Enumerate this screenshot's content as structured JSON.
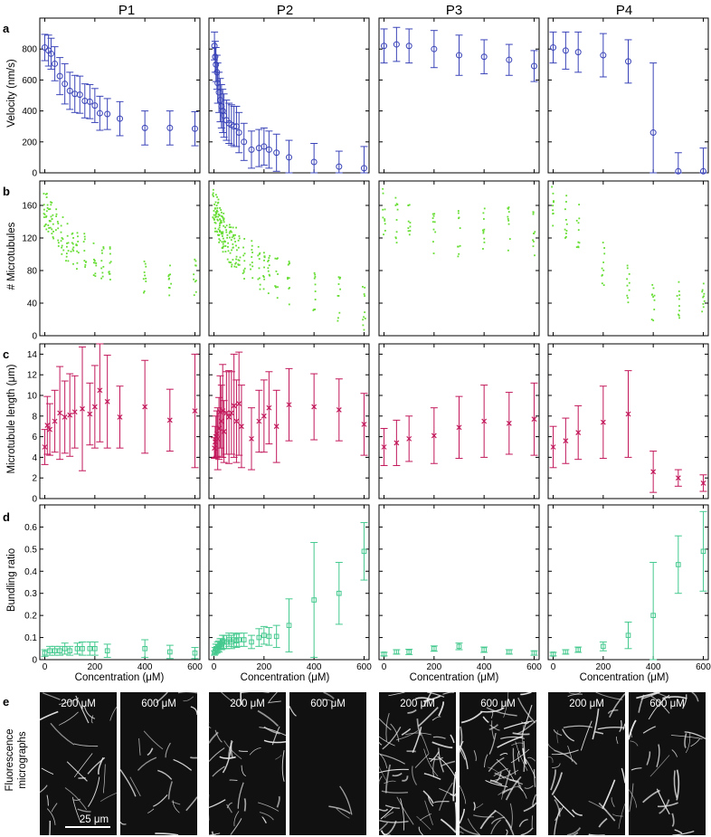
{
  "panel_titles": [
    "P1",
    "P2",
    "P3",
    "P4"
  ],
  "row_letters": [
    "a",
    "b",
    "c",
    "d",
    "e"
  ],
  "y_labels": [
    "Velocity (nm/s)",
    "# Microtubules",
    "Microtubule length (μm)",
    "Bundling ratio"
  ],
  "x_label": "Concentration (μM)",
  "micrograph_label_lines": [
    "Fluorescence",
    "micrographs"
  ],
  "micrograph_labels": [
    "200 μM",
    "600 μM"
  ],
  "scale_bar_label": "25 μm",
  "colors": {
    "velocity": "#3a44b8",
    "microtubules": "#66dd33",
    "length": "#c2185b",
    "bundling": "#44c98e",
    "axes": "#000000",
    "micrograph_bg": "#111111",
    "filament": "#e6e6e6"
  },
  "chart_data": [
    {
      "row": "a",
      "type": "scatter",
      "marker": "circle-errorbar",
      "ylabel": "Velocity (nm/s)",
      "ylim": [
        0,
        1000
      ],
      "yticks": [
        0,
        200,
        400,
        600,
        800
      ],
      "xticks": [
        0,
        200,
        400,
        600
      ],
      "panels": [
        {
          "name": "P1",
          "xlim": [
            -20,
            620
          ],
          "x": [
            0,
            15,
            25,
            40,
            60,
            80,
            100,
            120,
            140,
            160,
            180,
            200,
            220,
            250,
            300,
            400,
            500,
            600
          ],
          "y": [
            810,
            790,
            770,
            705,
            625,
            575,
            530,
            510,
            505,
            465,
            460,
            435,
            385,
            380,
            350,
            290,
            290,
            285
          ],
          "err": [
            85,
            100,
            100,
            110,
            120,
            130,
            120,
            120,
            120,
            110,
            110,
            110,
            110,
            100,
            110,
            110,
            110,
            110
          ]
        },
        {
          "name": "P2",
          "xlim": [
            -20,
            620
          ],
          "x": [
            2,
            5,
            8,
            12,
            15,
            20,
            25,
            30,
            35,
            40,
            50,
            60,
            70,
            80,
            90,
            100,
            120,
            150,
            180,
            200,
            220,
            250,
            300,
            400,
            500,
            600
          ],
          "y": [
            820,
            750,
            700,
            650,
            580,
            520,
            470,
            430,
            400,
            370,
            340,
            320,
            310,
            300,
            300,
            260,
            200,
            150,
            160,
            170,
            150,
            130,
            100,
            70,
            40,
            30
          ],
          "err": [
            90,
            100,
            110,
            110,
            130,
            130,
            140,
            140,
            140,
            140,
            130,
            130,
            130,
            130,
            130,
            130,
            120,
            120,
            120,
            120,
            120,
            120,
            110,
            120,
            100,
            140
          ]
        },
        {
          "name": "P3",
          "xlim": [
            -20,
            620
          ],
          "x": [
            0,
            50,
            100,
            200,
            300,
            400,
            500,
            600
          ],
          "y": [
            820,
            830,
            820,
            800,
            760,
            750,
            730,
            690
          ],
          "err": [
            110,
            110,
            110,
            120,
            130,
            110,
            100,
            100
          ]
        },
        {
          "name": "P4",
          "xlim": [
            -20,
            620
          ],
          "x": [
            0,
            50,
            100,
            200,
            300,
            400,
            500,
            600
          ],
          "y": [
            810,
            790,
            780,
            760,
            720,
            260,
            10,
            10
          ],
          "err": [
            100,
            120,
            130,
            140,
            140,
            450,
            120,
            150
          ]
        }
      ]
    },
    {
      "row": "b",
      "type": "scatter",
      "marker": "dot",
      "ylabel": "# Microtubules",
      "ylim": [
        0,
        190
      ],
      "yticks": [
        0,
        40,
        80,
        120,
        160
      ],
      "xticks": [
        0,
        200,
        400,
        600
      ],
      "panels": [
        {
          "name": "P1",
          "xlim": [
            -20,
            620
          ],
          "profile": [
            [
              0,
              155
            ],
            [
              100,
              110
            ],
            [
              250,
              90
            ],
            [
              400,
              75
            ],
            [
              600,
              72
            ]
          ],
          "spread": 30,
          "x": [
            0,
            10,
            20,
            30,
            50,
            70,
            90,
            110,
            130,
            160,
            200,
            230,
            260,
            400,
            500,
            600
          ]
        },
        {
          "name": "P2",
          "xlim": [
            -20,
            620
          ],
          "profile": [
            [
              0,
              160
            ],
            [
              50,
              115
            ],
            [
              150,
              90
            ],
            [
              300,
              65
            ],
            [
              600,
              35
            ]
          ],
          "spread": 35,
          "x": [
            0,
            5,
            10,
            15,
            20,
            25,
            30,
            35,
            40,
            50,
            60,
            70,
            80,
            90,
            100,
            120,
            150,
            180,
            200,
            220,
            250,
            300,
            400,
            500,
            600
          ]
        },
        {
          "name": "P3",
          "xlim": [
            -20,
            620
          ],
          "profile": [
            [
              0,
              150
            ],
            [
              200,
              130
            ],
            [
              600,
              125
            ]
          ],
          "spread": 40,
          "x": [
            0,
            50,
            100,
            200,
            300,
            400,
            500,
            600
          ]
        },
        {
          "name": "P4",
          "xlim": [
            -20,
            620
          ],
          "profile": [
            [
              0,
              160
            ],
            [
              100,
              135
            ],
            [
              200,
              90
            ],
            [
              300,
              60
            ],
            [
              400,
              45
            ],
            [
              600,
              45
            ]
          ],
          "spread": 35,
          "x": [
            0,
            50,
            100,
            200,
            300,
            400,
            500,
            600
          ]
        }
      ]
    },
    {
      "row": "c",
      "type": "scatter",
      "marker": "x-errorbar",
      "ylabel": "Microtubule length (μm)",
      "ylim": [
        0,
        15
      ],
      "yticks": [
        0,
        2,
        4,
        6,
        8,
        10,
        12,
        14
      ],
      "xticks": [
        0,
        200,
        400,
        600
      ],
      "panels": [
        {
          "name": "P1",
          "xlim": [
            -20,
            620
          ],
          "x": [
            0,
            10,
            20,
            40,
            60,
            80,
            100,
            120,
            150,
            180,
            200,
            220,
            250,
            300,
            400,
            500,
            600
          ],
          "y": [
            5.0,
            7.1,
            6.7,
            7.5,
            8.3,
            7.9,
            8.1,
            8.4,
            8.7,
            8.2,
            8.9,
            10.5,
            9.4,
            7.9,
            8.9,
            7.6,
            8.5
          ],
          "err": [
            1.7,
            2.8,
            2.5,
            3.0,
            4.5,
            3.5,
            4.0,
            3.5,
            6.0,
            3.0,
            4.0,
            5.0,
            4.5,
            3.0,
            4.5,
            3.0,
            5.5
          ]
        },
        {
          "name": "P2",
          "xlim": [
            -20,
            620
          ],
          "x": [
            2,
            5,
            8,
            12,
            15,
            20,
            25,
            30,
            35,
            40,
            50,
            60,
            70,
            80,
            90,
            100,
            110,
            150,
            180,
            200,
            220,
            250,
            300,
            400,
            500,
            600
          ],
          "y": [
            4.9,
            5.5,
            6.0,
            6.3,
            5.8,
            6.8,
            8.4,
            7.5,
            8.5,
            6.5,
            8.3,
            7.9,
            8.3,
            9.0,
            7.5,
            9.2,
            7.0,
            5.8,
            7.5,
            8.0,
            8.8,
            7.0,
            9.1,
            8.9,
            8.6,
            7.2
          ],
          "err": [
            1.0,
            1.5,
            2.0,
            2.2,
            3.0,
            3.0,
            3.5,
            3.5,
            4.5,
            3.0,
            4.0,
            4.5,
            4.0,
            5.0,
            4.0,
            5.0,
            4.0,
            3.0,
            3.0,
            3.5,
            3.5,
            3.5,
            3.5,
            3.2,
            3.0,
            3.0
          ]
        },
        {
          "name": "P3",
          "xlim": [
            -20,
            620
          ],
          "x": [
            0,
            50,
            100,
            200,
            300,
            400,
            500,
            600
          ],
          "y": [
            5.0,
            5.4,
            5.8,
            6.1,
            6.9,
            7.5,
            7.3,
            7.7
          ],
          "err": [
            1.8,
            2.2,
            2.2,
            2.7,
            3.0,
            3.5,
            3.0,
            3.5
          ]
        },
        {
          "name": "P4",
          "xlim": [
            -20,
            620
          ],
          "x": [
            0,
            50,
            100,
            200,
            300,
            400,
            500,
            600
          ],
          "y": [
            5.0,
            5.6,
            6.4,
            7.4,
            8.2,
            2.6,
            2.0,
            1.5
          ],
          "err": [
            2.0,
            2.2,
            2.6,
            3.5,
            4.2,
            2.0,
            0.8,
            0.8
          ]
        }
      ]
    },
    {
      "row": "d",
      "type": "scatter",
      "marker": "square-errorbar",
      "ylabel": "Bundling ratio",
      "ylim": [
        0,
        0.7
      ],
      "yticks": [
        0,
        0.1,
        0.2,
        0.3,
        0.4,
        0.5,
        0.6
      ],
      "xticks": [
        0,
        200,
        400,
        600
      ],
      "panels": [
        {
          "name": "P1",
          "xlim": [
            -20,
            620
          ],
          "x": [
            0,
            20,
            40,
            60,
            80,
            100,
            130,
            150,
            180,
            200,
            250,
            400,
            500,
            600
          ],
          "y": [
            0.03,
            0.04,
            0.04,
            0.04,
            0.05,
            0.04,
            0.05,
            0.05,
            0.05,
            0.05,
            0.04,
            0.05,
            0.035,
            0.03
          ],
          "err": [
            0.015,
            0.02,
            0.02,
            0.02,
            0.025,
            0.02,
            0.025,
            0.03,
            0.03,
            0.03,
            0.03,
            0.04,
            0.03,
            0.025
          ]
        },
        {
          "name": "P2",
          "xlim": [
            -20,
            620
          ],
          "x": [
            2,
            5,
            8,
            12,
            15,
            20,
            25,
            30,
            35,
            40,
            50,
            60,
            70,
            80,
            90,
            100,
            120,
            150,
            180,
            200,
            220,
            250,
            300,
            400,
            500,
            600
          ],
          "y": [
            0.03,
            0.04,
            0.05,
            0.05,
            0.06,
            0.06,
            0.07,
            0.07,
            0.08,
            0.08,
            0.08,
            0.09,
            0.08,
            0.09,
            0.085,
            0.09,
            0.09,
            0.08,
            0.1,
            0.11,
            0.105,
            0.105,
            0.155,
            0.27,
            0.3,
            0.49
          ],
          "err": [
            0.01,
            0.015,
            0.02,
            0.02,
            0.02,
            0.025,
            0.025,
            0.025,
            0.03,
            0.03,
            0.03,
            0.03,
            0.03,
            0.03,
            0.03,
            0.03,
            0.03,
            0.03,
            0.04,
            0.04,
            0.04,
            0.05,
            0.12,
            0.26,
            0.14,
            0.13
          ]
        },
        {
          "name": "P3",
          "xlim": [
            -20,
            620
          ],
          "x": [
            0,
            50,
            100,
            200,
            300,
            400,
            500,
            600
          ],
          "y": [
            0.025,
            0.035,
            0.035,
            0.05,
            0.06,
            0.045,
            0.035,
            0.03
          ],
          "err": [
            0.008,
            0.01,
            0.012,
            0.012,
            0.015,
            0.012,
            0.01,
            0.01
          ]
        },
        {
          "name": "P4",
          "xlim": [
            -20,
            620
          ],
          "x": [
            0,
            50,
            100,
            200,
            300,
            400,
            500,
            600
          ],
          "y": [
            0.025,
            0.035,
            0.045,
            0.06,
            0.11,
            0.2,
            0.43,
            0.49
          ],
          "err": [
            0.008,
            0.01,
            0.012,
            0.02,
            0.06,
            0.24,
            0.13,
            0.18
          ]
        }
      ]
    }
  ]
}
